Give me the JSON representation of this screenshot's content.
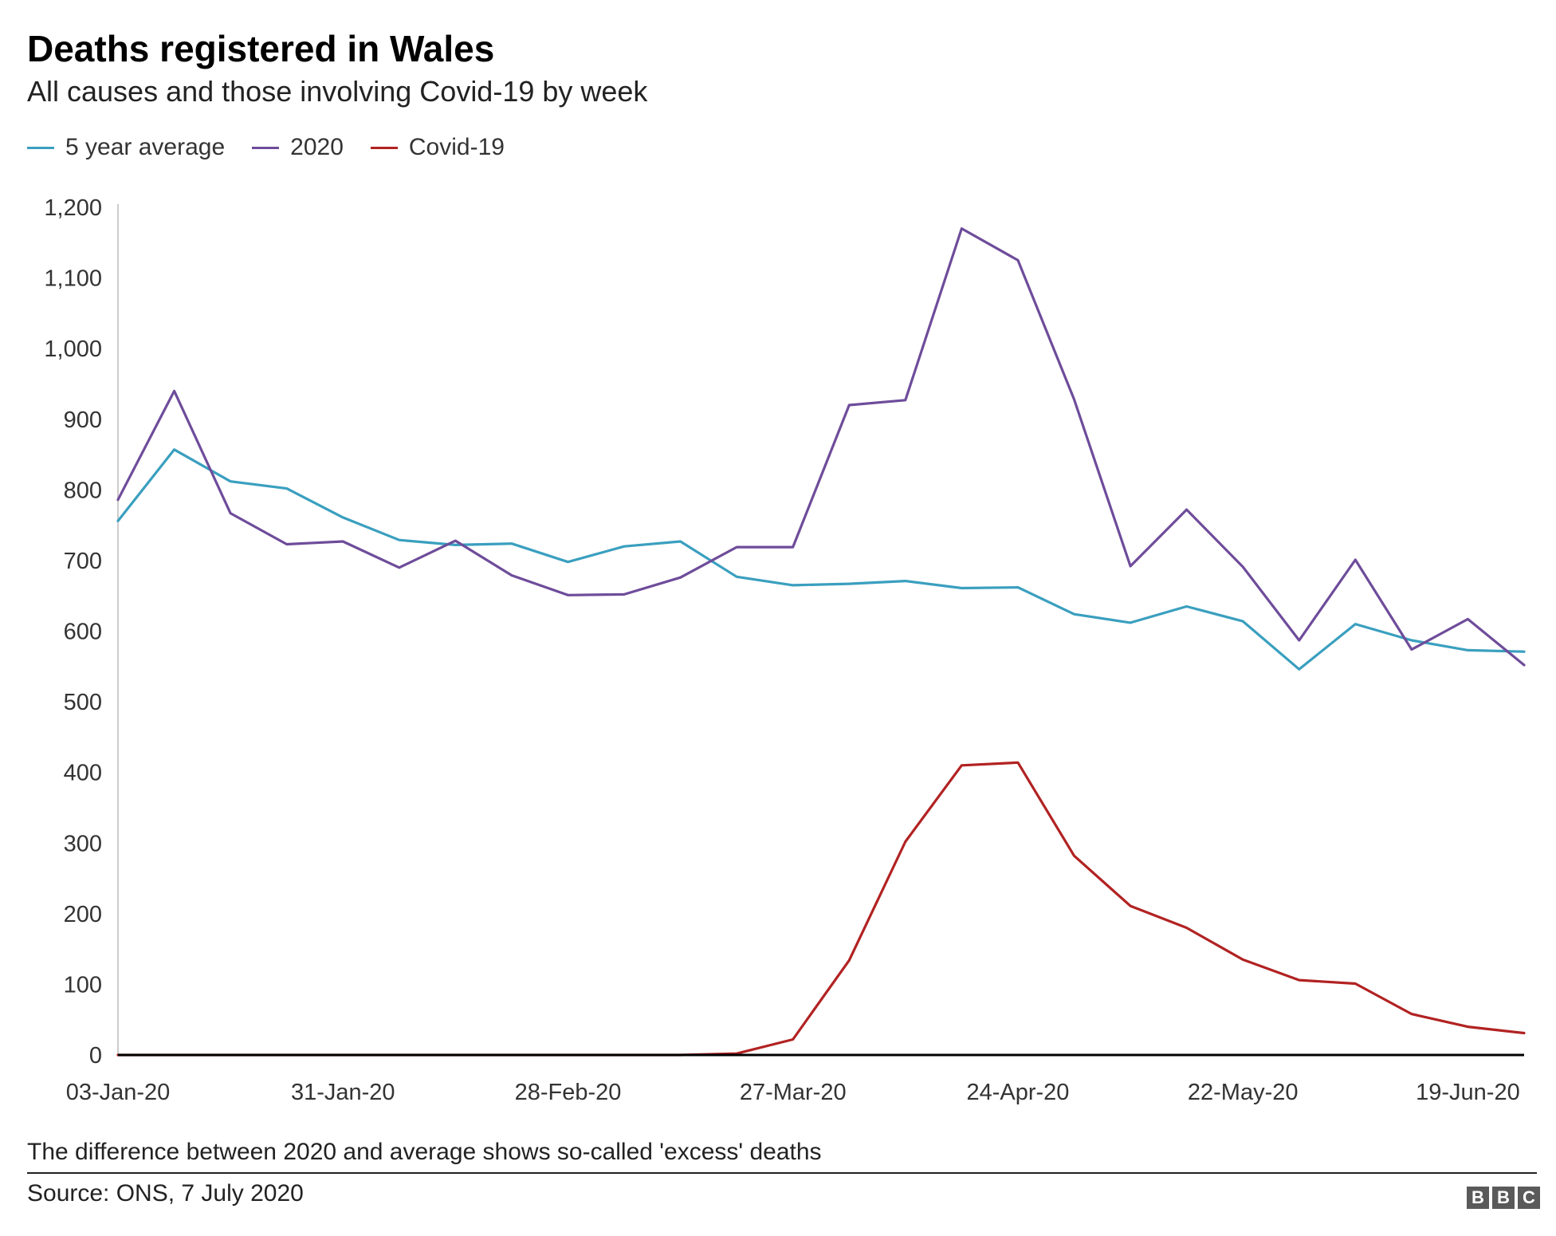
{
  "header": {
    "title": "Deaths registered in Wales",
    "subtitle": "All causes and those involving Covid-19 by week"
  },
  "footer": {
    "note": "The difference between 2020 and average shows so-called 'excess' deaths",
    "source": "Source: ONS, 7 July 2020",
    "logo_letters": [
      "B",
      "B",
      "C"
    ]
  },
  "chart_data": {
    "type": "line",
    "x": [
      "03-Jan-20",
      "10-Jan-20",
      "17-Jan-20",
      "24-Jan-20",
      "31-Jan-20",
      "07-Feb-20",
      "14-Feb-20",
      "21-Feb-20",
      "28-Feb-20",
      "06-Mar-20",
      "13-Mar-20",
      "20-Mar-20",
      "27-Mar-20",
      "03-Apr-20",
      "10-Apr-20",
      "17-Apr-20",
      "24-Apr-20",
      "01-May-20",
      "08-May-20",
      "15-May-20",
      "22-May-20",
      "29-May-20",
      "05-Jun-20",
      "12-Jun-20",
      "19-Jun-20",
      "26-Jun-20"
    ],
    "xtick_labels": [
      "03-Jan-20",
      "31-Jan-20",
      "28-Feb-20",
      "27-Mar-20",
      "24-Apr-20",
      "22-May-20",
      "19-Jun-20"
    ],
    "ylim": [
      0,
      1200
    ],
    "yticks": [
      0,
      100,
      200,
      300,
      400,
      500,
      600,
      700,
      800,
      900,
      1000,
      1100,
      1200
    ],
    "ytick_labels": [
      "0",
      "100",
      "200",
      "300",
      "400",
      "500",
      "600",
      "700",
      "800",
      "900",
      "1,000",
      "1,100",
      "1,200"
    ],
    "series": [
      {
        "name": "5 year average",
        "color": "#3a9fbf",
        "values": [
          756,
          857,
          812,
          802,
          761,
          729,
          722,
          724,
          698,
          720,
          727,
          677,
          665,
          667,
          671,
          661,
          662,
          624,
          612,
          635,
          614,
          546,
          610,
          587,
          573,
          571
        ]
      },
      {
        "name": "2020",
        "color": "#6e4c9a",
        "values": [
          786,
          940,
          767,
          723,
          727,
          690,
          728,
          679,
          651,
          652,
          676,
          719,
          719,
          920,
          927,
          1170,
          1125,
          928,
          692,
          772,
          691,
          587,
          701,
          574,
          617,
          552
        ]
      },
      {
        "name": "Covid-19",
        "color": "#b22222",
        "values": [
          0,
          0,
          0,
          0,
          0,
          0,
          0,
          0,
          0,
          0,
          0,
          2,
          22,
          134,
          302,
          410,
          414,
          282,
          211,
          180,
          135,
          106,
          101,
          58,
          40,
          31
        ]
      }
    ],
    "grid": false,
    "legend_position": "top-left"
  }
}
